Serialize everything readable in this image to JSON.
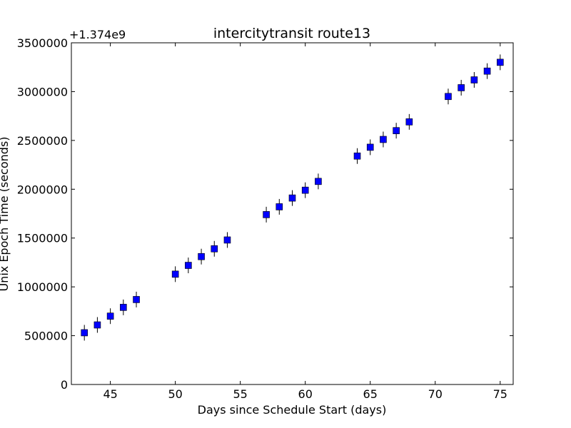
{
  "chart_data": {
    "type": "scatter",
    "title": "intercitytransit route13",
    "xlabel": "Days since Schedule Start (days)",
    "ylabel": "Unix Epoch Time (seconds)",
    "y_offset_label": "+1.374e9",
    "xlim": [
      42,
      76
    ],
    "ylim": [
      0,
      3500000
    ],
    "xticks": [
      45,
      50,
      55,
      60,
      65,
      70,
      75
    ],
    "yticks": [
      0,
      500000,
      1000000,
      1500000,
      2000000,
      2500000,
      3000000,
      3500000
    ],
    "grid": false,
    "marker": "square",
    "marker_color": "#0000ff",
    "series": [
      {
        "x": [
          43,
          44,
          45,
          46,
          47,
          50,
          51,
          52,
          53,
          54,
          57,
          58,
          59,
          60,
          61,
          64,
          65,
          66,
          67,
          68,
          71,
          72,
          73,
          74,
          75
        ],
        "y": [
          530000,
          610000,
          700000,
          790000,
          870000,
          1130000,
          1220000,
          1310000,
          1390000,
          1480000,
          1740000,
          1820000,
          1910000,
          1990000,
          2080000,
          2340000,
          2430000,
          2510000,
          2600000,
          2690000,
          2950000,
          3040000,
          3120000,
          3210000,
          3300000
        ]
      }
    ]
  }
}
